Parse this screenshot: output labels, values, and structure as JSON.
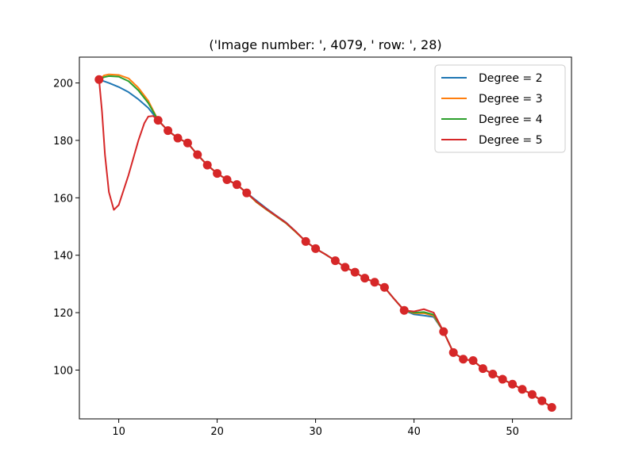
{
  "chart_data": {
    "type": "line",
    "title": "('Image number: ', 4079, ' row: ', 28)",
    "xlabel": "",
    "ylabel": "",
    "xlim": [
      6.0,
      56.0
    ],
    "ylim": [
      83.0,
      209.0
    ],
    "x_ticks": [
      10,
      20,
      30,
      40,
      50
    ],
    "y_ticks": [
      100,
      120,
      140,
      160,
      180,
      200
    ],
    "x_tick_labels": [
      "10",
      "20",
      "30",
      "40",
      "50"
    ],
    "y_tick_labels": [
      "100",
      "120",
      "140",
      "160",
      "180",
      "200"
    ],
    "grid": false,
    "legend_position": "top-right",
    "series": [
      {
        "name": "Degree = 2",
        "color": "#1f77b4",
        "points": [
          [
            8,
            201.2
          ],
          [
            9,
            200.0
          ],
          [
            10,
            198.6
          ],
          [
            11,
            196.8
          ],
          [
            12,
            194.3
          ],
          [
            13,
            191.3
          ],
          [
            14,
            187.0
          ],
          [
            15,
            183.4
          ],
          [
            16,
            180.8
          ],
          [
            17,
            179.1
          ],
          [
            18,
            175.0
          ],
          [
            19,
            171.4
          ],
          [
            20,
            168.5
          ],
          [
            21,
            166.3
          ],
          [
            22,
            164.6
          ],
          [
            23,
            161.7
          ],
          [
            24,
            159.0
          ],
          [
            25,
            156.3
          ],
          [
            26,
            153.8
          ],
          [
            27,
            151.4
          ],
          [
            28,
            148.2
          ],
          [
            29,
            144.8
          ],
          [
            30,
            142.3
          ],
          [
            31,
            140.3
          ],
          [
            32,
            138.1
          ],
          [
            33,
            135.8
          ],
          [
            34,
            134.1
          ],
          [
            35,
            132.0
          ],
          [
            36,
            130.6
          ],
          [
            37,
            128.8
          ],
          [
            38,
            124.7
          ],
          [
            39,
            120.8
          ],
          [
            40,
            119.4
          ],
          [
            41,
            119.0
          ],
          [
            42,
            118.5
          ],
          [
            43,
            113.4
          ],
          [
            44,
            106.1
          ],
          [
            45,
            103.8
          ],
          [
            46,
            103.3
          ],
          [
            47,
            100.5
          ],
          [
            48,
            98.6
          ],
          [
            49,
            96.8
          ],
          [
            50,
            95.1
          ],
          [
            51,
            93.3
          ],
          [
            52,
            91.5
          ],
          [
            53,
            89.3
          ],
          [
            54,
            87.0
          ]
        ]
      },
      {
        "name": "Degree = 3",
        "color": "#ff7f0e",
        "points": [
          [
            8,
            201.2
          ],
          [
            8.5,
            202.6
          ],
          [
            9,
            203.0
          ],
          [
            10,
            202.8
          ],
          [
            11,
            201.6
          ],
          [
            12,
            198.3
          ],
          [
            13,
            193.8
          ],
          [
            14,
            187.0
          ],
          [
            15,
            183.4
          ],
          [
            16,
            180.8
          ],
          [
            17,
            179.1
          ],
          [
            18,
            175.0
          ],
          [
            19,
            171.4
          ],
          [
            20,
            168.5
          ],
          [
            21,
            166.3
          ],
          [
            22,
            164.6
          ],
          [
            23,
            161.7
          ],
          [
            24,
            158.4
          ],
          [
            25,
            155.9
          ],
          [
            26,
            153.5
          ],
          [
            27,
            151.1
          ],
          [
            28,
            148.0
          ],
          [
            29,
            144.8
          ],
          [
            30,
            142.3
          ],
          [
            31,
            140.3
          ],
          [
            32,
            138.1
          ],
          [
            33,
            135.8
          ],
          [
            34,
            134.1
          ],
          [
            35,
            132.0
          ],
          [
            36,
            130.6
          ],
          [
            37,
            128.8
          ],
          [
            38,
            124.7
          ],
          [
            39,
            120.8
          ],
          [
            40,
            119.8
          ],
          [
            41,
            119.8
          ],
          [
            42,
            118.9
          ],
          [
            43,
            113.4
          ],
          [
            44,
            106.1
          ],
          [
            45,
            103.8
          ],
          [
            46,
            103.3
          ],
          [
            47,
            100.5
          ],
          [
            48,
            98.6
          ],
          [
            49,
            96.8
          ],
          [
            50,
            95.1
          ],
          [
            51,
            93.3
          ],
          [
            52,
            91.5
          ],
          [
            53,
            89.3
          ],
          [
            54,
            87.0
          ]
        ]
      },
      {
        "name": "Degree = 4",
        "color": "#2ca02c",
        "points": [
          [
            8,
            201.2
          ],
          [
            8.5,
            202.0
          ],
          [
            9,
            202.4
          ],
          [
            10,
            202.2
          ],
          [
            11,
            200.6
          ],
          [
            12,
            197.4
          ],
          [
            13,
            193.0
          ],
          [
            14,
            187.0
          ],
          [
            15,
            183.4
          ],
          [
            16,
            180.8
          ],
          [
            17,
            179.1
          ],
          [
            18,
            175.0
          ],
          [
            19,
            171.4
          ],
          [
            20,
            168.5
          ],
          [
            21,
            166.3
          ],
          [
            22,
            164.6
          ],
          [
            23,
            161.7
          ],
          [
            24,
            158.6
          ],
          [
            25,
            156.0
          ],
          [
            26,
            153.6
          ],
          [
            27,
            151.2
          ],
          [
            28,
            148.1
          ],
          [
            29,
            144.8
          ],
          [
            30,
            142.3
          ],
          [
            31,
            140.3
          ],
          [
            32,
            138.1
          ],
          [
            33,
            135.8
          ],
          [
            34,
            134.1
          ],
          [
            35,
            132.0
          ],
          [
            36,
            130.6
          ],
          [
            37,
            128.8
          ],
          [
            38,
            124.7
          ],
          [
            39,
            120.8
          ],
          [
            40,
            120.0
          ],
          [
            41,
            120.2
          ],
          [
            42,
            119.3
          ],
          [
            43,
            113.4
          ],
          [
            44,
            106.1
          ],
          [
            45,
            103.8
          ],
          [
            46,
            103.3
          ],
          [
            47,
            100.5
          ],
          [
            48,
            98.6
          ],
          [
            49,
            96.8
          ],
          [
            50,
            95.1
          ],
          [
            51,
            93.3
          ],
          [
            52,
            91.5
          ],
          [
            53,
            89.3
          ],
          [
            54,
            87.0
          ]
        ]
      },
      {
        "name": "Degree = 5",
        "color": "#d62728",
        "points": [
          [
            8,
            201.2
          ],
          [
            8.3,
            190.0
          ],
          [
            8.6,
            175.0
          ],
          [
            9,
            162.0
          ],
          [
            9.5,
            155.8
          ],
          [
            10,
            157.5
          ],
          [
            11,
            168.0
          ],
          [
            12,
            180.0
          ],
          [
            12.6,
            186.0
          ],
          [
            13,
            188.3
          ],
          [
            13.5,
            188.5
          ],
          [
            14,
            187.0
          ],
          [
            15,
            183.4
          ],
          [
            16,
            180.8
          ],
          [
            17,
            179.1
          ],
          [
            18,
            175.0
          ],
          [
            19,
            171.4
          ],
          [
            20,
            168.5
          ],
          [
            21,
            166.3
          ],
          [
            22,
            164.6
          ],
          [
            23,
            161.7
          ],
          [
            24,
            158.7
          ],
          [
            25,
            156.1
          ],
          [
            26,
            153.7
          ],
          [
            27,
            151.3
          ],
          [
            28,
            148.2
          ],
          [
            29,
            144.8
          ],
          [
            30,
            142.3
          ],
          [
            31,
            140.3
          ],
          [
            32,
            138.1
          ],
          [
            33,
            135.8
          ],
          [
            34,
            134.1
          ],
          [
            35,
            132.0
          ],
          [
            36,
            130.6
          ],
          [
            37,
            128.8
          ],
          [
            38,
            124.7
          ],
          [
            39,
            120.8
          ],
          [
            40,
            120.4
          ],
          [
            41,
            121.2
          ],
          [
            42,
            120.0
          ],
          [
            43,
            113.4
          ],
          [
            44,
            106.1
          ],
          [
            45,
            103.8
          ],
          [
            46,
            103.3
          ],
          [
            47,
            100.5
          ],
          [
            48,
            98.6
          ],
          [
            49,
            96.8
          ],
          [
            50,
            95.1
          ],
          [
            51,
            93.3
          ],
          [
            52,
            91.5
          ],
          [
            53,
            89.3
          ],
          [
            54,
            87.0
          ]
        ]
      }
    ],
    "markers": {
      "color": "#d62728",
      "points": [
        [
          8,
          201.2
        ],
        [
          14,
          187.0
        ],
        [
          15,
          183.4
        ],
        [
          16,
          180.8
        ],
        [
          17,
          179.1
        ],
        [
          18,
          175.0
        ],
        [
          19,
          171.4
        ],
        [
          20,
          168.5
        ],
        [
          21,
          166.3
        ],
        [
          22,
          164.6
        ],
        [
          23,
          161.7
        ],
        [
          29,
          144.8
        ],
        [
          30,
          142.3
        ],
        [
          32,
          138.1
        ],
        [
          33,
          135.8
        ],
        [
          34,
          134.1
        ],
        [
          35,
          132.0
        ],
        [
          36,
          130.6
        ],
        [
          37,
          128.8
        ],
        [
          39,
          120.8
        ],
        [
          43,
          113.4
        ],
        [
          44,
          106.1
        ],
        [
          45,
          103.8
        ],
        [
          46,
          103.3
        ],
        [
          47,
          100.5
        ],
        [
          48,
          98.6
        ],
        [
          49,
          96.8
        ],
        [
          50,
          95.1
        ],
        [
          51,
          93.3
        ],
        [
          52,
          91.5
        ],
        [
          53,
          89.3
        ],
        [
          54,
          87.0
        ]
      ]
    }
  }
}
